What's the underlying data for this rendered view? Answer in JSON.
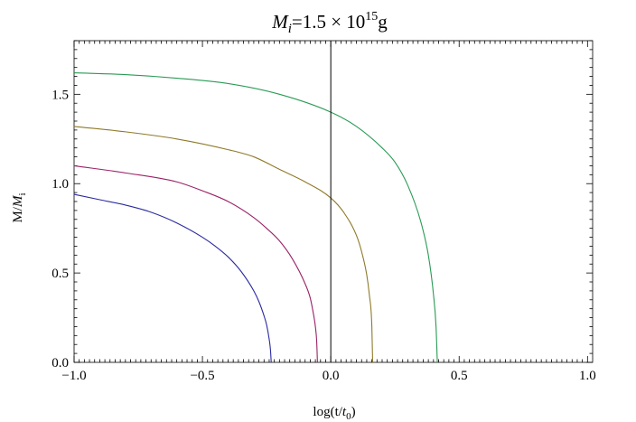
{
  "chart_data": {
    "type": "line",
    "title": {
      "main": "M",
      "sub": "i",
      "rest": "=1.5 × 10",
      "sup": "15",
      "unit": "g"
    },
    "xlabel": {
      "pre": "log(t/",
      "main": "t",
      "sub": "0",
      "post": ")"
    },
    "ylabel": {
      "pre": "M/",
      "main": "M",
      "sub": "i"
    },
    "xlim": [
      -1.0,
      1.02
    ],
    "ylim": [
      0.0,
      1.8
    ],
    "x_ticks": [
      -1.0,
      -0.5,
      0.0,
      0.5,
      1.0
    ],
    "x_tick_labels": [
      "−1.0",
      "−0.5",
      "0.0",
      "0.5",
      "1.0"
    ],
    "y_ticks": [
      0.0,
      0.5,
      1.0,
      1.5
    ],
    "y_tick_labels": [
      "0.0",
      "0.5",
      "1.0",
      "1.5"
    ],
    "grid": false,
    "vertical_reference_line_x": 0.0,
    "series": [
      {
        "color": "#2a2aa0",
        "x": [
          -1.0,
          -0.9,
          -0.8,
          -0.7,
          -0.6,
          -0.5,
          -0.45,
          -0.4,
          -0.35,
          -0.3,
          -0.28,
          -0.26,
          -0.25,
          -0.24,
          -0.235,
          -0.232
        ],
        "y": [
          0.94,
          0.91,
          0.88,
          0.84,
          0.78,
          0.7,
          0.65,
          0.59,
          0.51,
          0.4,
          0.34,
          0.26,
          0.21,
          0.13,
          0.07,
          0.0
        ]
      },
      {
        "color": "#992266",
        "x": [
          -1.0,
          -0.8,
          -0.6,
          -0.5,
          -0.4,
          -0.3,
          -0.25,
          -0.2,
          -0.15,
          -0.1,
          -0.08,
          -0.07,
          -0.06,
          -0.055,
          -0.052
        ],
        "y": [
          1.1,
          1.06,
          1.01,
          0.96,
          0.9,
          0.81,
          0.75,
          0.68,
          0.58,
          0.44,
          0.36,
          0.29,
          0.2,
          0.12,
          0.0
        ]
      },
      {
        "color": "#8e7a2a",
        "x": [
          -1.0,
          -0.8,
          -0.6,
          -0.4,
          -0.3,
          -0.2,
          -0.1,
          0.0,
          0.05,
          0.1,
          0.12,
          0.14,
          0.15,
          0.16,
          0.163
        ],
        "y": [
          1.32,
          1.29,
          1.25,
          1.19,
          1.15,
          1.08,
          1.01,
          0.92,
          0.84,
          0.71,
          0.62,
          0.49,
          0.38,
          0.2,
          0.0
        ]
      },
      {
        "color": "#2a9a55",
        "x": [
          -1.0,
          -0.8,
          -0.6,
          -0.4,
          -0.2,
          0.0,
          0.1,
          0.2,
          0.25,
          0.3,
          0.35,
          0.38,
          0.4,
          0.41,
          0.415
        ],
        "y": [
          1.62,
          1.61,
          1.59,
          1.56,
          1.5,
          1.4,
          1.32,
          1.2,
          1.12,
          0.99,
          0.79,
          0.6,
          0.38,
          0.2,
          0.0
        ]
      }
    ]
  }
}
